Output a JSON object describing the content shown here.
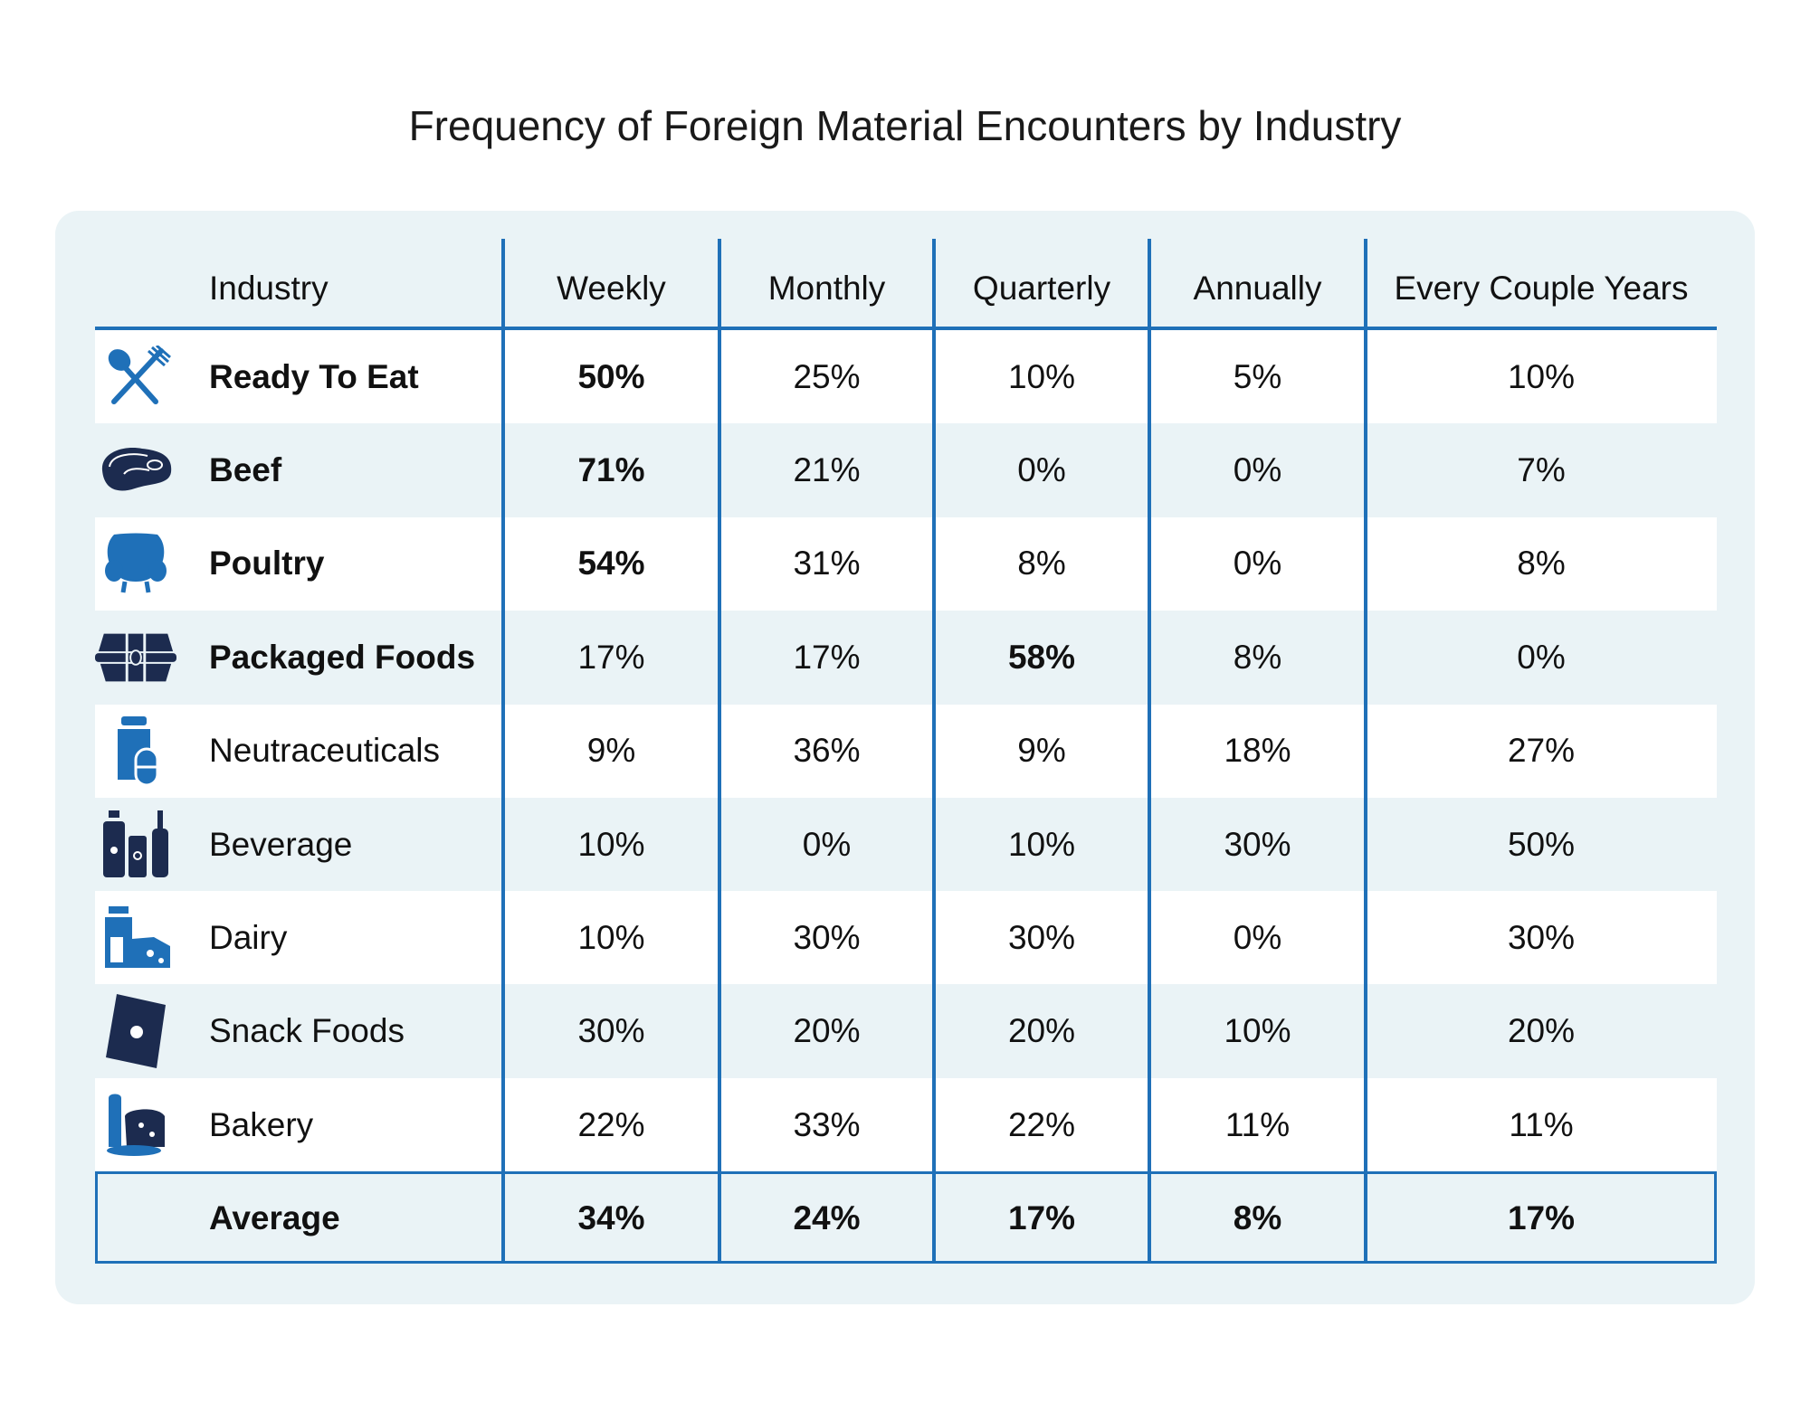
{
  "title": "Frequency of Foreign Material Encounters by Industry",
  "colors": {
    "accent": "#1f70b8",
    "navy": "#1c2b4f",
    "panel": "#eaf3f6"
  },
  "columns": [
    "Industry",
    "Weekly",
    "Monthly",
    "Quarterly",
    "Annually",
    "Every Couple Years"
  ],
  "rows": [
    {
      "icon": "fork-spoon-icon",
      "industry": "Ready To Eat",
      "values": [
        "50%",
        "25%",
        "10%",
        "5%",
        "10%"
      ],
      "bold_label": true,
      "bold_cols": [
        0
      ]
    },
    {
      "icon": "steak-icon",
      "industry": "Beef",
      "values": [
        "71%",
        "21%",
        "0%",
        "0%",
        "7%"
      ],
      "bold_label": true,
      "bold_cols": [
        0
      ]
    },
    {
      "icon": "chicken-icon",
      "industry": "Poultry",
      "values": [
        "54%",
        "31%",
        "8%",
        "0%",
        "8%"
      ],
      "bold_label": true,
      "bold_cols": [
        0
      ]
    },
    {
      "icon": "package-icon",
      "industry": "Packaged Foods",
      "values": [
        "17%",
        "17%",
        "58%",
        "8%",
        "0%"
      ],
      "bold_label": true,
      "bold_cols": [
        2
      ]
    },
    {
      "icon": "supplement-bottle-icon",
      "industry": "Neutraceuticals",
      "values": [
        "9%",
        "36%",
        "9%",
        "18%",
        "27%"
      ],
      "bold_label": false,
      "bold_cols": []
    },
    {
      "icon": "bottles-icon",
      "industry": "Beverage",
      "values": [
        "10%",
        "0%",
        "10%",
        "30%",
        "50%"
      ],
      "bold_label": false,
      "bold_cols": []
    },
    {
      "icon": "milk-cheese-icon",
      "industry": "Dairy",
      "values": [
        "10%",
        "30%",
        "30%",
        "0%",
        "30%"
      ],
      "bold_label": false,
      "bold_cols": []
    },
    {
      "icon": "chip-bag-icon",
      "industry": "Snack Foods",
      "values": [
        "30%",
        "20%",
        "20%",
        "10%",
        "20%"
      ],
      "bold_label": false,
      "bold_cols": []
    },
    {
      "icon": "bread-icon",
      "industry": "Bakery",
      "values": [
        "22%",
        "33%",
        "22%",
        "11%",
        "11%"
      ],
      "bold_label": false,
      "bold_cols": []
    }
  ],
  "average": {
    "label": "Average",
    "values": [
      "34%",
      "24%",
      "17%",
      "8%",
      "17%"
    ]
  }
}
